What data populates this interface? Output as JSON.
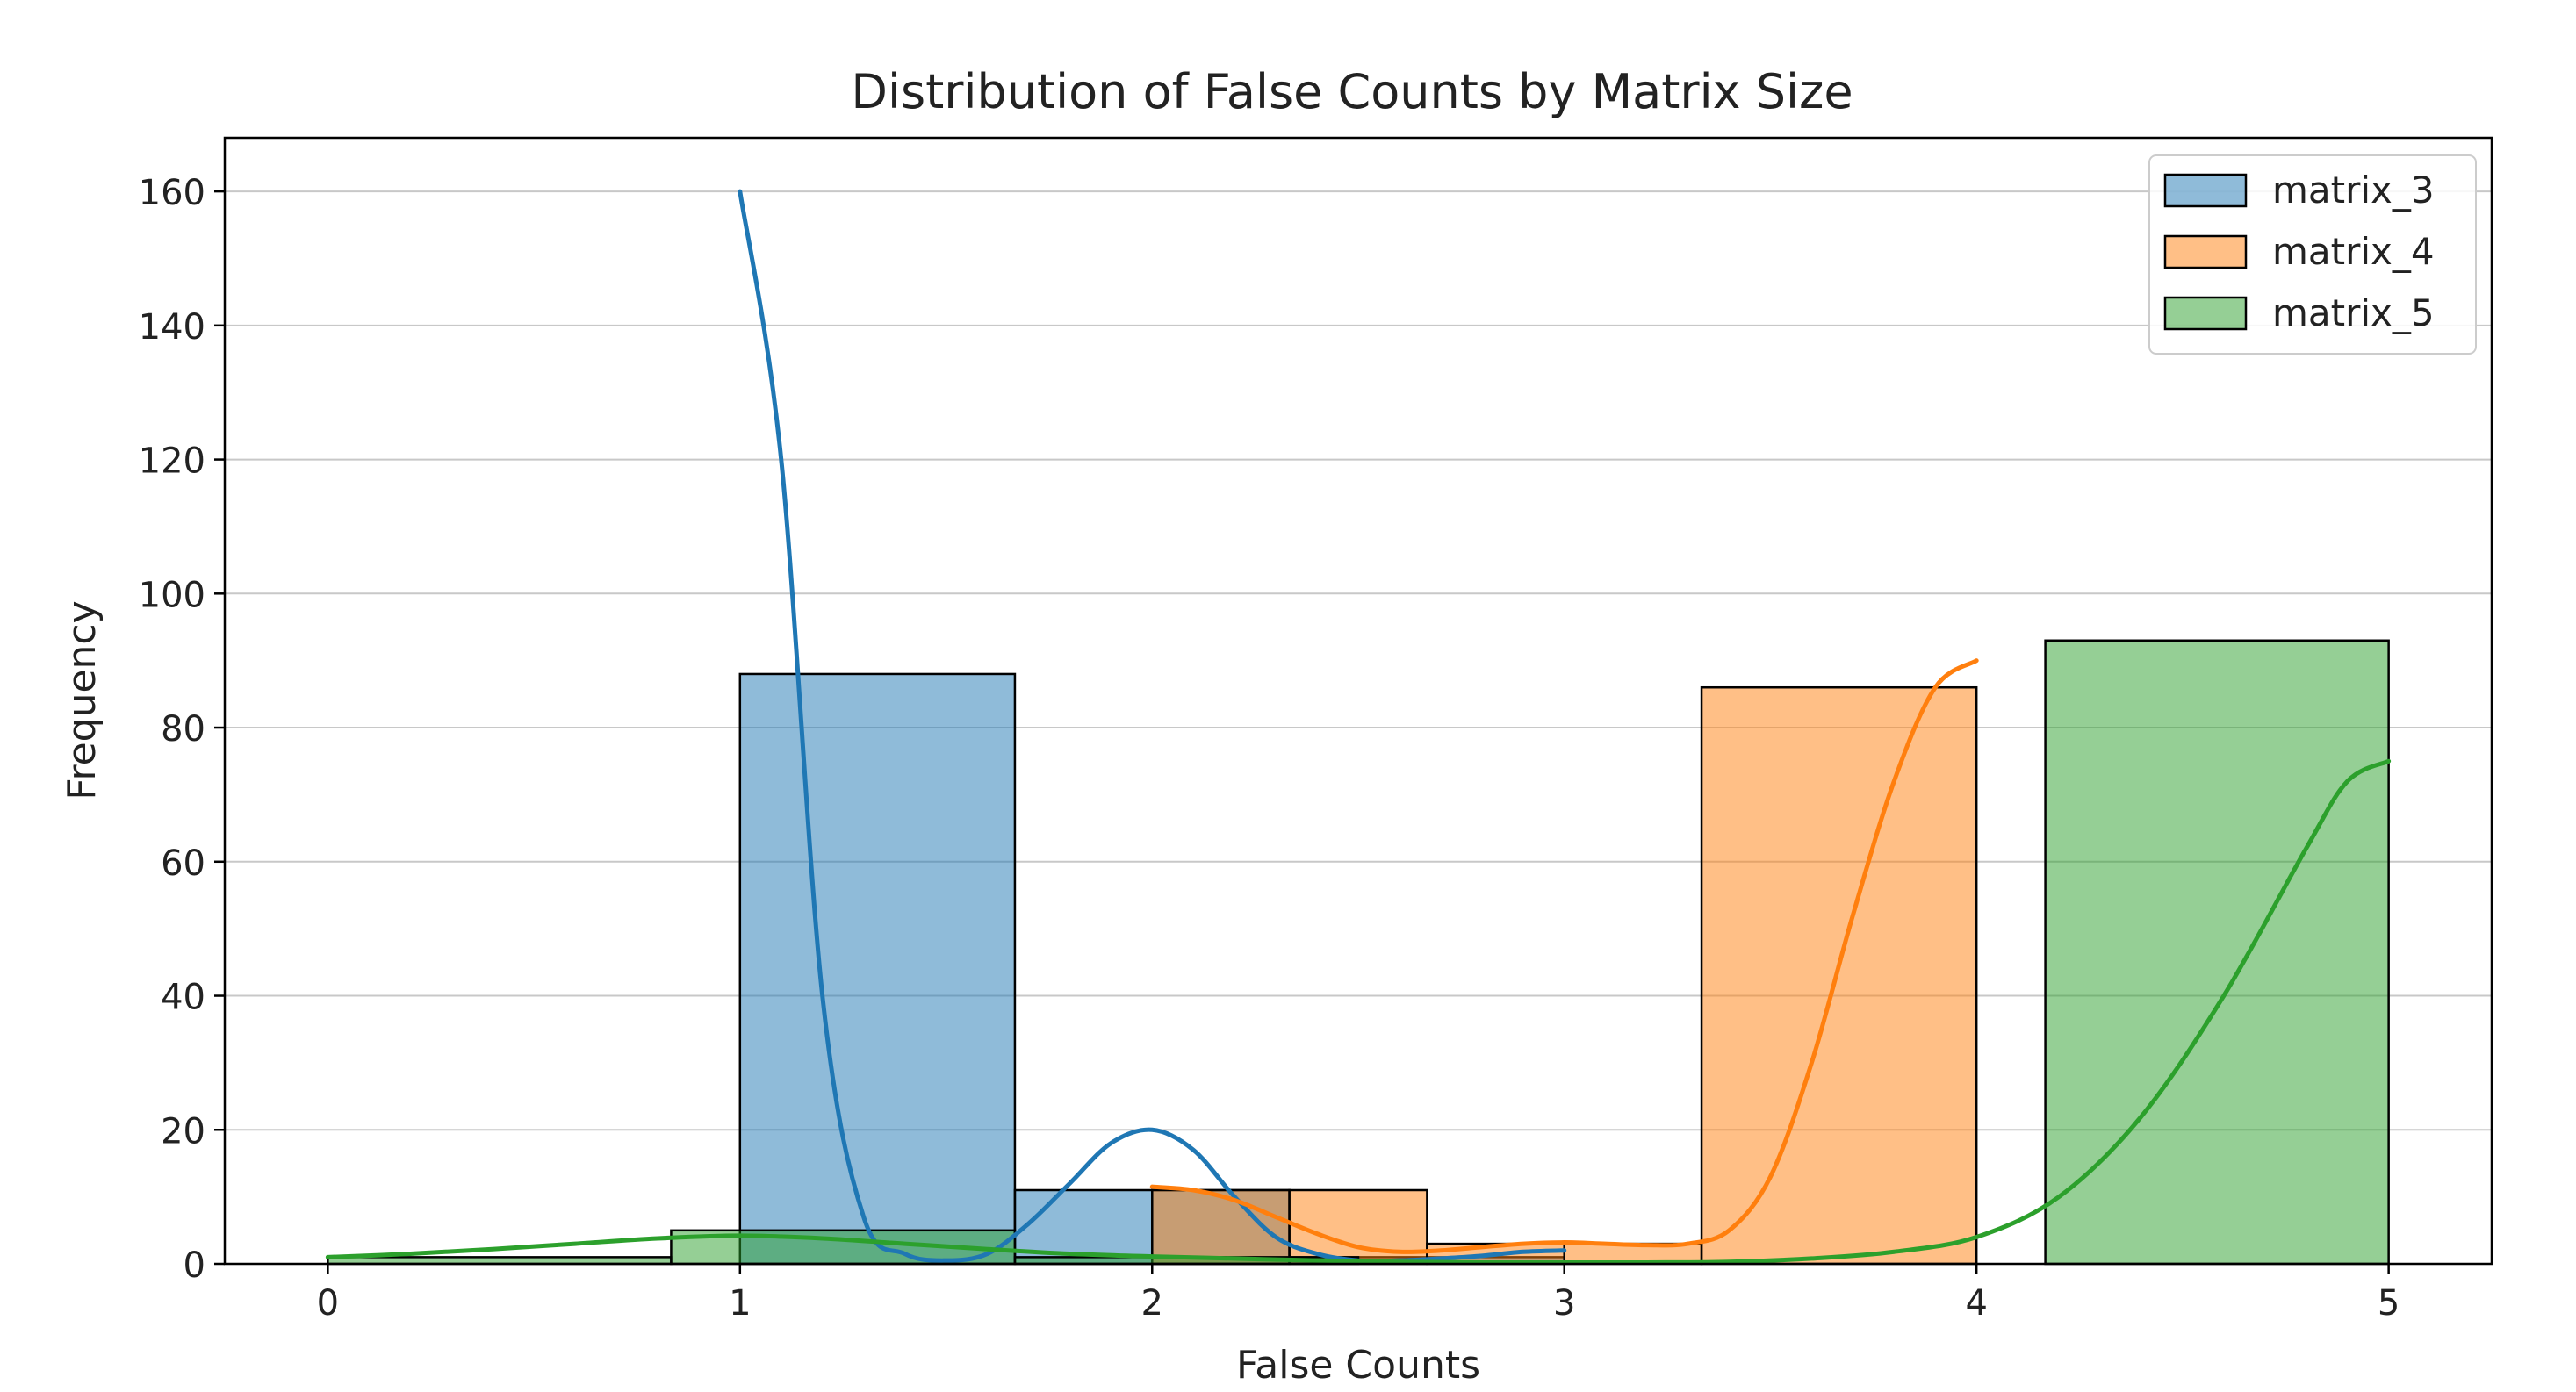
{
  "chart_data": {
    "type": "histogram",
    "title": "Distribution of False Counts by Matrix Size",
    "xlabel": "False Counts",
    "ylabel": "Frequency",
    "xlim": [
      -0.25,
      5.25
    ],
    "ylim": [
      0,
      168
    ],
    "xticks": [
      0,
      1,
      2,
      3,
      4,
      5
    ],
    "yticks": [
      0,
      20,
      40,
      60,
      80,
      100,
      120,
      140,
      160
    ],
    "grid": "y",
    "legend": "top-right",
    "series": [
      {
        "name": "matrix_3",
        "color": "#1f77b4",
        "fill": "#1f77b4",
        "bins": [
          {
            "x0": 1.0,
            "x1": 1.667,
            "count": 88
          },
          {
            "x0": 1.667,
            "x1": 2.333,
            "count": 11
          },
          {
            "x0": 2.333,
            "x1": 3.0,
            "count": 1
          }
        ],
        "kde": [
          [
            1.0,
            160
          ],
          [
            1.1,
            120
          ],
          [
            1.2,
            40
          ],
          [
            1.3,
            7
          ],
          [
            1.4,
            1.5
          ],
          [
            1.5,
            0.5
          ],
          [
            1.6,
            1.5
          ],
          [
            1.7,
            6
          ],
          [
            1.8,
            12
          ],
          [
            1.9,
            18
          ],
          [
            2.0,
            20
          ],
          [
            2.1,
            17
          ],
          [
            2.2,
            10
          ],
          [
            2.3,
            4
          ],
          [
            2.4,
            1.5
          ],
          [
            2.5,
            0.5
          ],
          [
            2.6,
            0.5
          ],
          [
            2.7,
            0.8
          ],
          [
            2.8,
            1.2
          ],
          [
            2.9,
            1.8
          ],
          [
            3.0,
            2
          ]
        ]
      },
      {
        "name": "matrix_4",
        "color": "#ff7f0e",
        "fill": "#ff7f0e",
        "bins": [
          {
            "x0": 2.0,
            "x1": 2.333,
            "count": 11
          },
          {
            "x0": 2.333,
            "x1": 2.667,
            "count": 11
          },
          {
            "x0": 2.667,
            "x1": 3.0,
            "count": 3
          },
          {
            "x0": 3.0,
            "x1": 3.333,
            "count": 3
          },
          {
            "x0": 3.333,
            "x1": 4.0,
            "count": 86
          }
        ],
        "kde": [
          [
            2.0,
            11.5
          ],
          [
            2.1,
            11
          ],
          [
            2.2,
            9.5
          ],
          [
            2.3,
            7
          ],
          [
            2.4,
            4.5
          ],
          [
            2.5,
            2.5
          ],
          [
            2.6,
            1.8
          ],
          [
            2.7,
            2
          ],
          [
            2.8,
            2.5
          ],
          [
            2.9,
            3
          ],
          [
            3.0,
            3.2
          ],
          [
            3.1,
            3
          ],
          [
            3.2,
            2.8
          ],
          [
            3.3,
            3
          ],
          [
            3.4,
            5
          ],
          [
            3.5,
            13
          ],
          [
            3.6,
            30
          ],
          [
            3.7,
            52
          ],
          [
            3.8,
            72
          ],
          [
            3.9,
            86
          ],
          [
            4.0,
            90
          ]
        ]
      },
      {
        "name": "matrix_5",
        "color": "#2ca02c",
        "fill": "#2ca02c",
        "bins": [
          {
            "x0": 0.0,
            "x1": 0.833,
            "count": 1
          },
          {
            "x0": 0.833,
            "x1": 1.667,
            "count": 5
          },
          {
            "x0": 1.667,
            "x1": 2.5,
            "count": 1
          },
          {
            "x0": 4.167,
            "x1": 5.0,
            "count": 93
          }
        ],
        "kde": [
          [
            0.0,
            1
          ],
          [
            0.2,
            1.5
          ],
          [
            0.4,
            2.2
          ],
          [
            0.6,
            3
          ],
          [
            0.8,
            3.8
          ],
          [
            1.0,
            4.2
          ],
          [
            1.2,
            3.8
          ],
          [
            1.4,
            3
          ],
          [
            1.6,
            2.2
          ],
          [
            1.8,
            1.5
          ],
          [
            2.0,
            1.1
          ],
          [
            2.2,
            0.8
          ],
          [
            2.4,
            0.5
          ],
          [
            2.6,
            0.3
          ],
          [
            2.8,
            0.2
          ],
          [
            3.0,
            0.2
          ],
          [
            3.2,
            0.2
          ],
          [
            3.4,
            0.3
          ],
          [
            3.6,
            0.8
          ],
          [
            3.8,
            1.8
          ],
          [
            4.0,
            4
          ],
          [
            4.2,
            10
          ],
          [
            4.4,
            22
          ],
          [
            4.6,
            40
          ],
          [
            4.8,
            62
          ],
          [
            4.9,
            72
          ],
          [
            5.0,
            75
          ]
        ]
      }
    ]
  }
}
